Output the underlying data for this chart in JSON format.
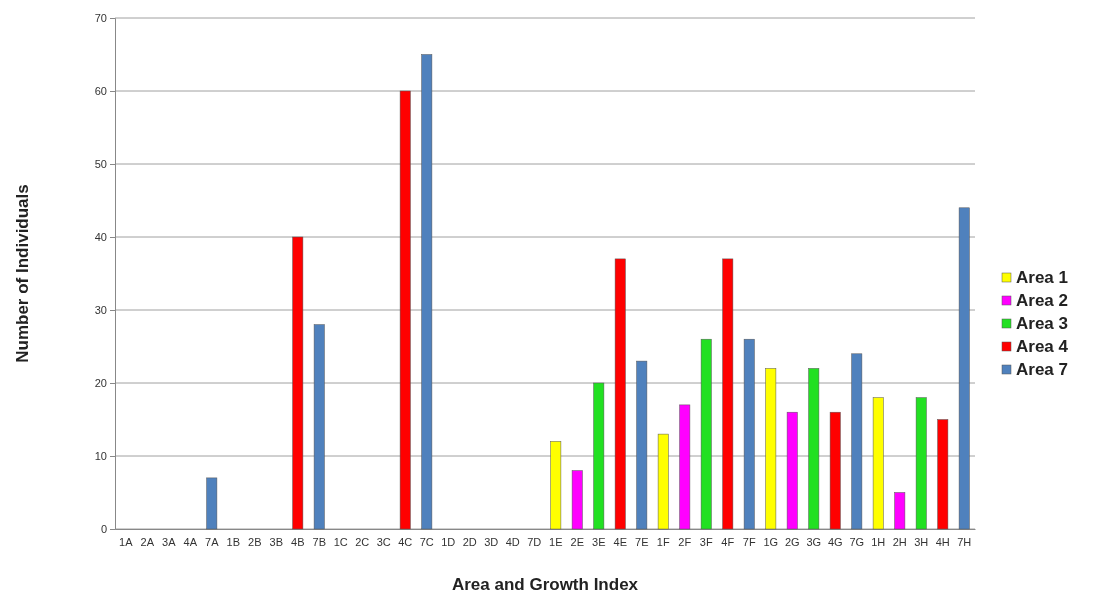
{
  "chart_data": {
    "type": "bar",
    "xlabel": "Area and Growth Index",
    "ylabel": "Number of Individuals",
    "categories": [
      "1A",
      "2A",
      "3A",
      "4A",
      "7A",
      "1B",
      "2B",
      "3B",
      "4B",
      "7B",
      "1C",
      "2C",
      "3C",
      "4C",
      "7C",
      "1D",
      "2D",
      "3D",
      "4D",
      "7D",
      "1E",
      "2E",
      "3E",
      "4E",
      "7E",
      "1F",
      "2F",
      "3F",
      "4F",
      "7F",
      "1G",
      "2G",
      "3G",
      "4G",
      "7G",
      "1H",
      "2H",
      "3H",
      "4H",
      "7H"
    ],
    "series": [
      {
        "name": "Area 1",
        "color": "#ffff00",
        "values": [
          0,
          null,
          null,
          null,
          null,
          0,
          null,
          null,
          null,
          null,
          0,
          null,
          null,
          null,
          null,
          0,
          null,
          null,
          null,
          null,
          12,
          null,
          null,
          null,
          null,
          13,
          null,
          null,
          null,
          null,
          22,
          null,
          null,
          null,
          null,
          18,
          null,
          null,
          null,
          null
        ]
      },
      {
        "name": "Area 2",
        "color": "#ff00ff",
        "values": [
          null,
          0,
          null,
          null,
          null,
          null,
          0,
          null,
          null,
          null,
          null,
          0,
          null,
          null,
          null,
          null,
          0,
          null,
          null,
          null,
          null,
          8,
          null,
          null,
          null,
          null,
          17,
          null,
          null,
          null,
          null,
          16,
          null,
          null,
          null,
          null,
          5,
          null,
          null,
          null
        ]
      },
      {
        "name": "Area 3",
        "color": "#22e022",
        "values": [
          null,
          null,
          0,
          null,
          null,
          null,
          null,
          0,
          null,
          null,
          null,
          null,
          0,
          null,
          null,
          null,
          null,
          0,
          null,
          null,
          null,
          null,
          20,
          null,
          null,
          null,
          null,
          26,
          null,
          null,
          null,
          null,
          22,
          null,
          null,
          null,
          null,
          18,
          null,
          null
        ]
      },
      {
        "name": "Area 4",
        "color": "#ff0000",
        "values": [
          null,
          null,
          null,
          0,
          null,
          null,
          null,
          null,
          40,
          null,
          null,
          null,
          null,
          60,
          null,
          null,
          null,
          null,
          0,
          null,
          null,
          null,
          null,
          37,
          null,
          null,
          null,
          null,
          37,
          null,
          null,
          null,
          null,
          16,
          null,
          null,
          null,
          null,
          15,
          null
        ]
      },
      {
        "name": "Area 7",
        "color": "#4f81bd",
        "values": [
          null,
          null,
          null,
          null,
          7,
          null,
          null,
          null,
          null,
          28,
          null,
          null,
          null,
          null,
          65,
          null,
          null,
          null,
          null,
          0,
          null,
          null,
          null,
          null,
          23,
          null,
          null,
          null,
          null,
          26,
          null,
          null,
          null,
          null,
          24,
          null,
          null,
          null,
          null,
          44
        ]
      }
    ],
    "ylim": [
      0,
      70
    ],
    "yticks": [
      0,
      10,
      20,
      30,
      40,
      50,
      60,
      70
    ],
    "grid": "y",
    "legend": "right"
  }
}
